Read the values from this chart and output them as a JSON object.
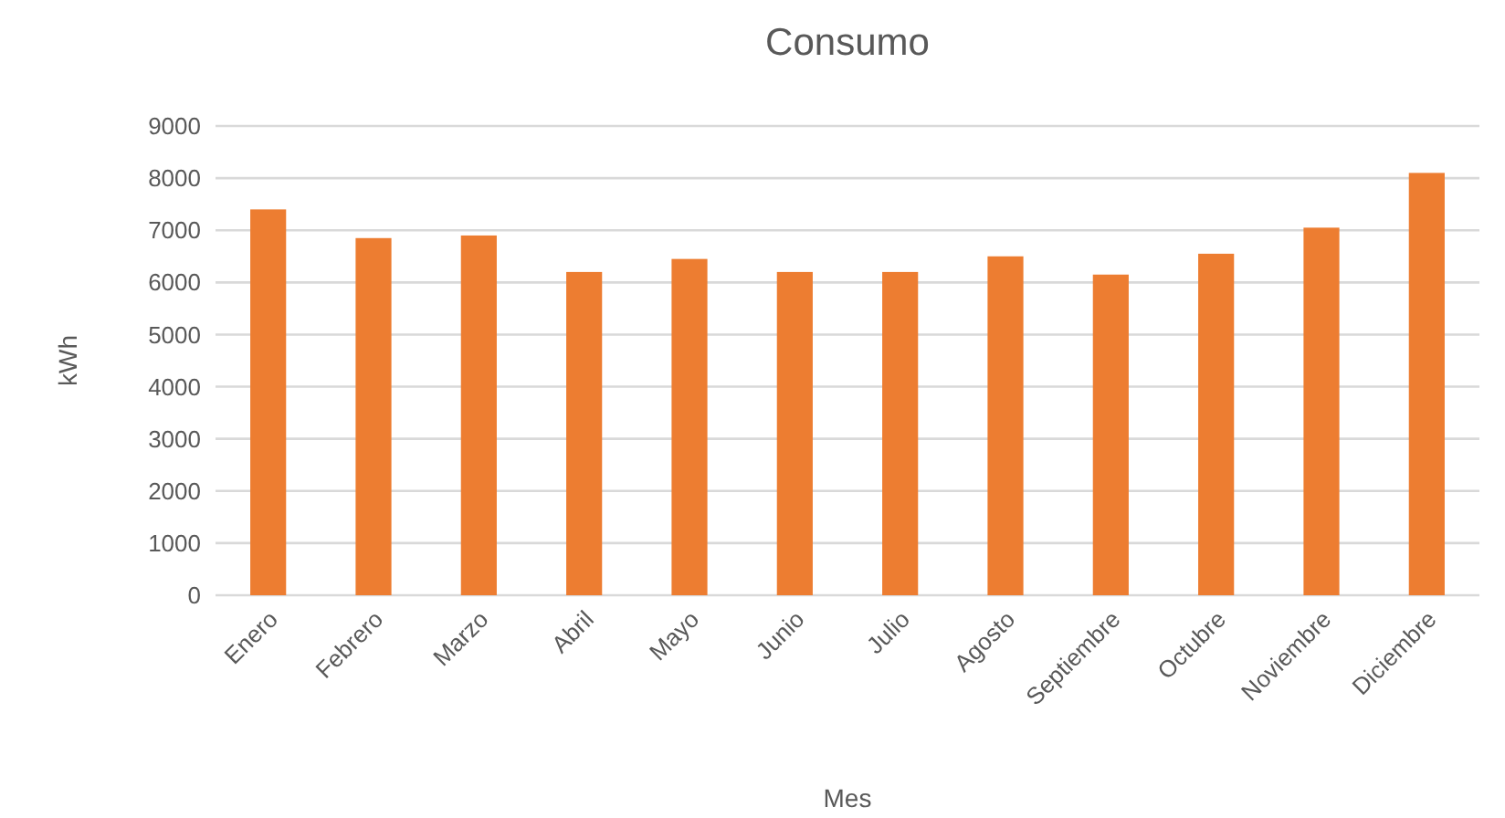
{
  "chart_data": {
    "type": "bar",
    "title": "Consumo",
    "xlabel": "Mes",
    "ylabel": "kWh",
    "categories": [
      "Enero",
      "Febrero",
      "Marzo",
      "Abril",
      "Mayo",
      "Junio",
      "Julio",
      "Agosto",
      "Septiembre",
      "Octubre",
      "Noviembre",
      "Diciembre"
    ],
    "values": [
      7400,
      6850,
      6900,
      6200,
      6450,
      6200,
      6200,
      6500,
      6150,
      6550,
      7050,
      8100
    ],
    "color": "#ed7d31",
    "ylim": [
      0,
      9000
    ],
    "yticks": [
      0,
      1000,
      2000,
      3000,
      4000,
      5000,
      6000,
      7000,
      8000,
      9000
    ],
    "grid": "y"
  }
}
